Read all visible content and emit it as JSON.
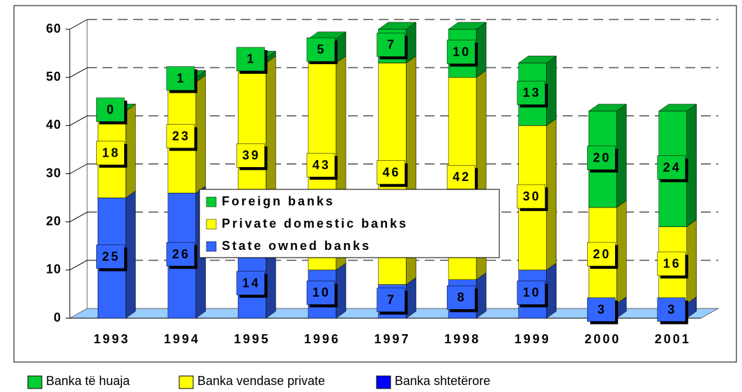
{
  "chart_data": {
    "type": "bar3d_stacked",
    "categories": [
      "1993",
      "1994",
      "1995",
      "1996",
      "1997",
      "1998",
      "1999",
      "2000",
      "2001"
    ],
    "series": [
      {
        "name": "State owned banks",
        "color": "#3366ff",
        "values": [
          25,
          26,
          14,
          10,
          7,
          8,
          10,
          3,
          3
        ]
      },
      {
        "name": "Private domestic banks",
        "color": "#ffff00",
        "values": [
          18,
          23,
          39,
          43,
          46,
          42,
          30,
          20,
          16
        ]
      },
      {
        "name": "Foreign banks",
        "color": "#00cc33",
        "values": [
          0,
          1,
          1,
          5,
          7,
          10,
          13,
          20,
          24
        ]
      }
    ],
    "ylim": [
      0,
      60
    ],
    "yticks": [
      0,
      10,
      20,
      30,
      40,
      50,
      60
    ],
    "grid": true,
    "legend": "center",
    "legend2": {
      "labels": [
        "Banka shtetërore",
        "Banka vendase private",
        "Banka të huaja"
      ],
      "colors": [
        "#0000ff",
        "#ffff00",
        "#00cc33"
      ]
    }
  }
}
